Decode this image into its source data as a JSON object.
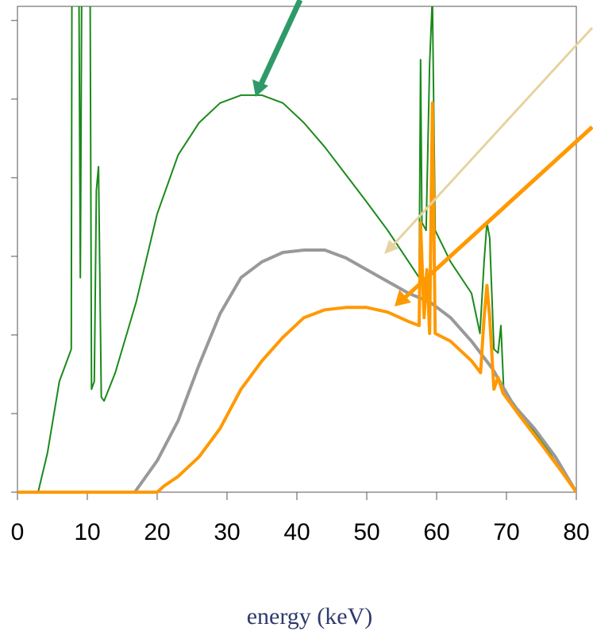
{
  "chart_data": {
    "type": "line",
    "xlabel": "energy (keV)",
    "xlim": [
      0,
      80
    ],
    "xticks": [
      0,
      10,
      20,
      30,
      40,
      50,
      60,
      70,
      80
    ],
    "ylim": [
      0,
      6.18
    ],
    "yticks": [
      0,
      1,
      2,
      3,
      4,
      5,
      6
    ],
    "series": [
      {
        "color": "#1a8a1a",
        "width": 2,
        "x": [
          0,
          2.95,
          4.3,
          6.0,
          7.7,
          7.8,
          8.8,
          9.0,
          9.2,
          10.4,
          10.6,
          11.0,
          11.3,
          11.6,
          12.0,
          12.4,
          14,
          17,
          20,
          23,
          26,
          29,
          32,
          35,
          38,
          41,
          44,
          47,
          50,
          53,
          56,
          57.5,
          57.7,
          57.9,
          58.5,
          59.0,
          59.4,
          59.8,
          62,
          65,
          66.2,
          66.8,
          67.2,
          67.6,
          68.2,
          68.8,
          69.2,
          69.6,
          72,
          75,
          78,
          80
        ],
        "values": [
          0,
          0,
          0.5,
          1.41,
          1.82,
          6.5,
          6.5,
          2.73,
          6.5,
          6.5,
          1.31,
          1.41,
          3.84,
          4.14,
          1.21,
          1.16,
          1.52,
          2.42,
          3.54,
          4.29,
          4.7,
          4.95,
          5.05,
          5.05,
          4.95,
          4.7,
          4.39,
          4.04,
          3.69,
          3.33,
          2.93,
          2.73,
          5.5,
          3.43,
          3.33,
          5.45,
          6.3,
          3.33,
          2.93,
          2.53,
          2.02,
          2.93,
          3.43,
          3.23,
          1.82,
          1.77,
          2.12,
          1.31,
          1.01,
          0.66,
          0.25,
          0
        ]
      },
      {
        "color": "#999999",
        "width": 4,
        "x": [
          0,
          16.8,
          18,
          20,
          23,
          26,
          29,
          32,
          35,
          38,
          41,
          44,
          47,
          50,
          53,
          56,
          59,
          62,
          65,
          68,
          71,
          74,
          77,
          80
        ],
        "values": [
          0,
          0,
          0.15,
          0.4,
          0.91,
          1.62,
          2.27,
          2.73,
          2.93,
          3.05,
          3.08,
          3.08,
          2.98,
          2.83,
          2.68,
          2.53,
          2.42,
          2.22,
          1.92,
          1.57,
          1.11,
          0.81,
          0.45,
          0
        ]
      },
      {
        "color": "#ff9900",
        "width": 4,
        "x": [
          0,
          20,
          21,
          23,
          26,
          29,
          32,
          35,
          38,
          41,
          44,
          47,
          50,
          53,
          56,
          57.5,
          57.7,
          58.2,
          58.6,
          59.0,
          59.4,
          59.8,
          62,
          65,
          66.3,
          66.8,
          67.2,
          67.6,
          68.2,
          68.8,
          69.5,
          72,
          75,
          78,
          80
        ],
        "values": [
          0,
          0,
          0.08,
          0.2,
          0.45,
          0.81,
          1.31,
          1.67,
          1.97,
          2.22,
          2.32,
          2.35,
          2.35,
          2.29,
          2.17,
          2.12,
          3.43,
          2.22,
          2.83,
          2.02,
          4.95,
          2.02,
          1.92,
          1.67,
          1.52,
          2.22,
          2.63,
          2.22,
          1.31,
          1.46,
          1.26,
          0.96,
          0.61,
          0.25,
          0
        ]
      }
    ]
  }
}
